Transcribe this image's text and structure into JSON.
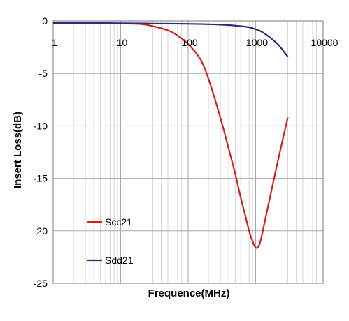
{
  "chart_data": {
    "type": "line",
    "title": "",
    "xlabel": "Frequence(MHz)",
    "ylabel": "Insert Loss(dB)",
    "x_scale": "log",
    "xlim": [
      1,
      10000
    ],
    "ylim": [
      -25,
      0
    ],
    "x_ticks": [
      1,
      10,
      100,
      1000,
      10000
    ],
    "x_tick_labels": [
      "1",
      "10",
      "100",
      "1000",
      "10000"
    ],
    "y_ticks": [
      0,
      -5,
      -10,
      -15,
      -20,
      -25
    ],
    "y_tick_labels": [
      "0",
      "-5",
      "-10",
      "-15",
      "-20",
      "-25"
    ],
    "grid": true,
    "legend_position": "lower-left",
    "series": [
      {
        "name": "Scc21",
        "color": "#d42020",
        "x": [
          1,
          5,
          10,
          20,
          30,
          50,
          70,
          100,
          150,
          200,
          300,
          400,
          500,
          600,
          700,
          800,
          900,
          1000,
          1100,
          1200,
          1400,
          1700,
          2000,
          2500,
          3000
        ],
        "y": [
          -0.2,
          -0.2,
          -0.25,
          -0.3,
          -0.5,
          -0.9,
          -1.4,
          -2.2,
          -3.6,
          -5.5,
          -9.2,
          -12.2,
          -14.6,
          -16.8,
          -18.5,
          -20.0,
          -21.0,
          -21.6,
          -21.5,
          -20.8,
          -18.8,
          -16.3,
          -14.2,
          -11.4,
          -9.2
        ]
      },
      {
        "name": "Sdd21",
        "color": "#2b2b80",
        "x": [
          1,
          10,
          30,
          100,
          200,
          400,
          600,
          800,
          1000,
          1200,
          1500,
          1800,
          2200,
          2600,
          3000
        ],
        "y": [
          -0.2,
          -0.22,
          -0.25,
          -0.28,
          -0.32,
          -0.4,
          -0.5,
          -0.6,
          -0.8,
          -1.0,
          -1.4,
          -1.8,
          -2.3,
          -2.9,
          -3.4
        ]
      }
    ]
  }
}
